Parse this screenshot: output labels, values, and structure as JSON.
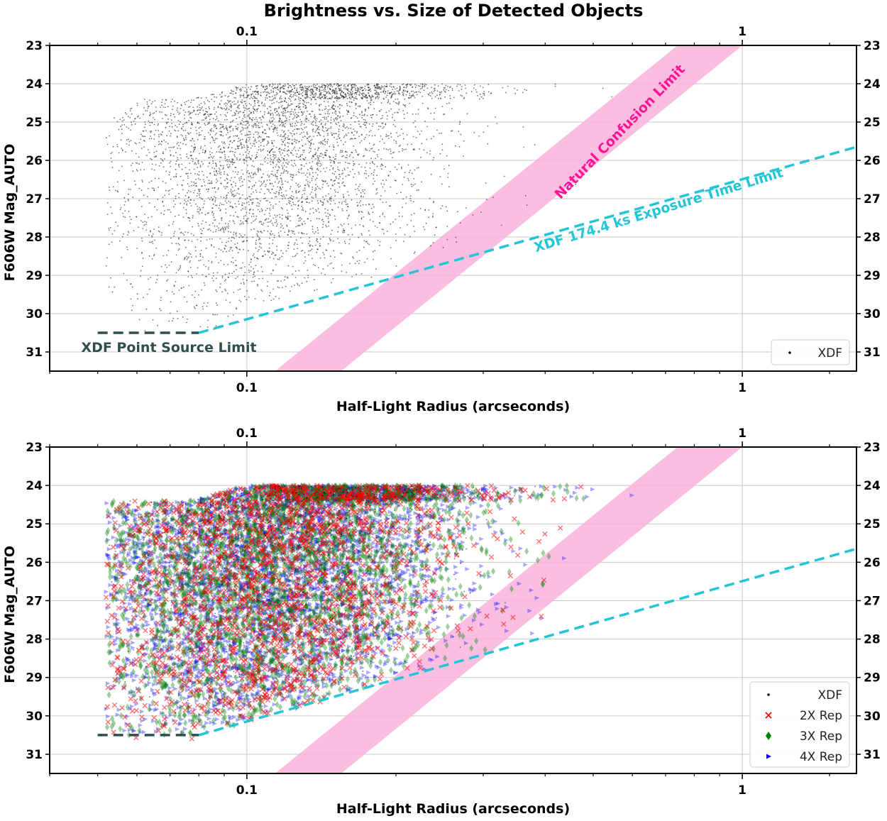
{
  "title": "Brightness vs. Size of Detected Objects",
  "chart_data": [
    {
      "type": "scatter",
      "panel": "top",
      "xlabel": "Half-Light Radius (arcseconds)",
      "ylabel": "F606W Mag_AUTO",
      "xscale": "log",
      "xlim": [
        0.04,
        1.7
      ],
      "ylim": [
        31.5,
        23
      ],
      "yticks": [
        23,
        24,
        25,
        26,
        27,
        28,
        29,
        30,
        31
      ],
      "yticks_right": [
        "23",
        "24",
        "25",
        "26",
        "27",
        "28",
        "29",
        "30",
        "31"
      ],
      "xticks": [
        "0.1",
        "1"
      ],
      "xticks_top": [
        "0.1",
        "1"
      ],
      "grid": true,
      "legend_position": "bottom-right",
      "series": [
        {
          "name": "XDF",
          "marker": "dot",
          "color": "#000000",
          "approx_count": 4500
        }
      ],
      "confusion_band": {
        "label": "Natural Confusion Limit",
        "x": [
          0.114,
          0.155,
          1.0,
          0.74
        ],
        "y": [
          31.5,
          31.5,
          23.0,
          23.0
        ],
        "color": "#f9b3dc",
        "label_color": "#ff1493"
      },
      "exposure_limit": {
        "label": "XDF 174.4 ks Exposure Time Limit",
        "x": [
          0.08,
          1.7
        ],
        "y": [
          30.5,
          25.65
        ],
        "color": "#22c5d5"
      },
      "point_source_limit": {
        "label": "XDF Point Source Limit",
        "x": [
          0.05,
          0.08
        ],
        "y": [
          30.5,
          30.5
        ],
        "color": "#2f4f4f"
      }
    },
    {
      "type": "scatter",
      "panel": "bottom",
      "xlabel": "Half-Light Radius (arcseconds)",
      "ylabel": "F606W Mag_AUTO",
      "xscale": "log",
      "xlim": [
        0.04,
        1.7
      ],
      "ylim": [
        31.5,
        23
      ],
      "yticks": [
        23,
        24,
        25,
        26,
        27,
        28,
        29,
        30,
        31
      ],
      "yticks_right": [
        "23",
        "24",
        "25",
        "26",
        "27",
        "28",
        "29",
        "30",
        "31"
      ],
      "xticks": [
        "0.1",
        "1"
      ],
      "xticks_top": [
        "0.1",
        "1"
      ],
      "grid": true,
      "legend_position": "bottom-right",
      "series": [
        {
          "name": "XDF",
          "marker": "dot",
          "color": "#000000",
          "approx_count": 4500
        },
        {
          "name": "2X Rep",
          "marker": "x",
          "color": "#ff0000",
          "approx_count": 9000
        },
        {
          "name": "3X Rep",
          "marker": "diamond",
          "color": "#008000",
          "approx_count": 13500
        },
        {
          "name": "4X Rep",
          "marker": "triangle-right",
          "color": "#0000ff",
          "approx_count": 18000
        }
      ],
      "confusion_band": {
        "x": [
          0.114,
          0.155,
          1.0,
          0.74
        ],
        "y": [
          31.5,
          31.5,
          23.0,
          23.0
        ],
        "color": "#f9b3dc"
      },
      "exposure_limit": {
        "x": [
          0.08,
          1.7
        ],
        "y": [
          30.5,
          25.65
        ],
        "color": "#22c5d5"
      },
      "point_source_limit": {
        "x": [
          0.05,
          0.08
        ],
        "y": [
          30.5,
          30.5
        ],
        "color": "#2f4f4f"
      }
    }
  ]
}
